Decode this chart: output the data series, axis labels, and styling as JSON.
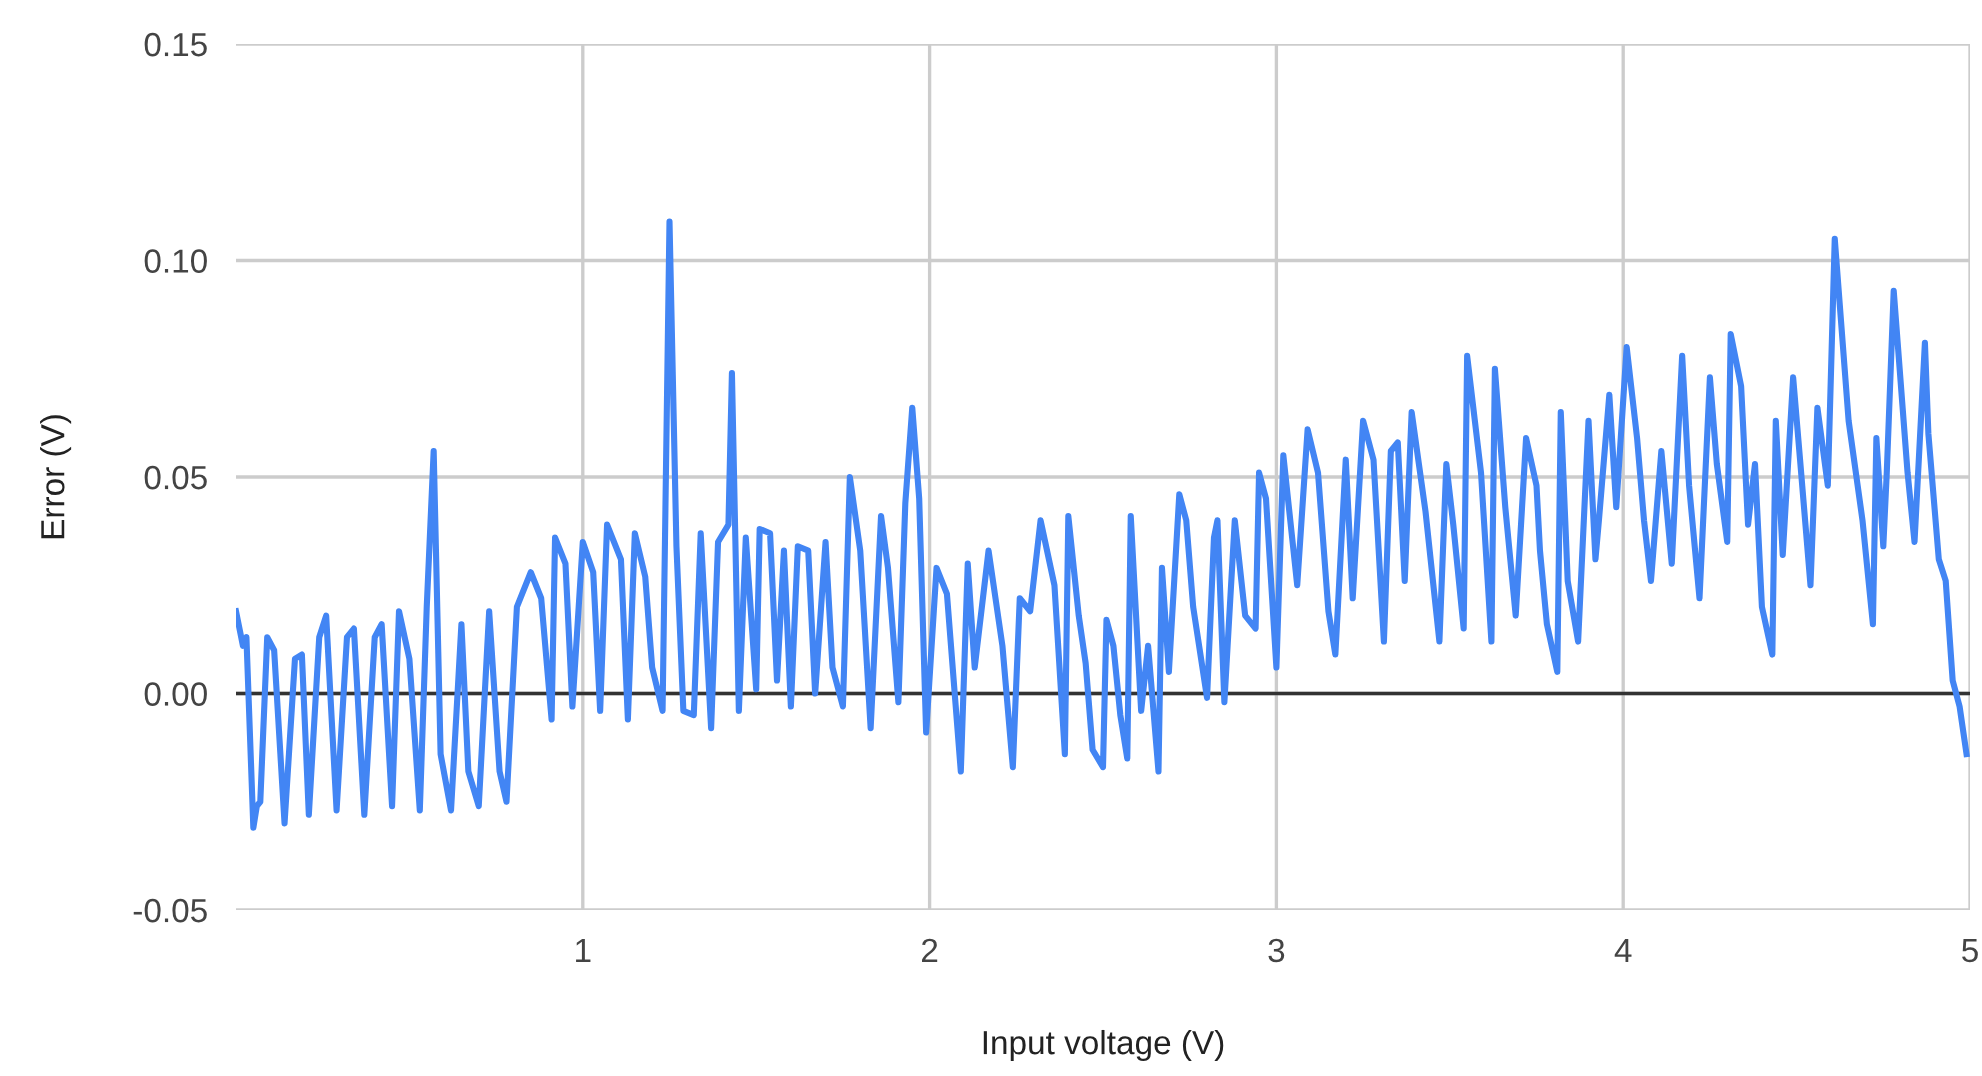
{
  "chart_data": {
    "type": "line",
    "xlabel": "Input voltage (V)",
    "ylabel": "Error (V)",
    "xlim": [
      0,
      5
    ],
    "xticks": [
      1,
      2,
      3,
      4,
      5
    ],
    "ylim": [
      -0.05,
      0.15
    ],
    "yticks": [
      {
        "value": -0.05,
        "label": "-0.05"
      },
      {
        "value": 0,
        "label": "0.00"
      },
      {
        "value": 0.05,
        "label": "0.05"
      },
      {
        "value": 0.1,
        "label": "0.10"
      },
      {
        "value": 0.15,
        "label": "0.15"
      }
    ],
    "grid": true,
    "marker": "none",
    "line_style": "solid",
    "ref_lines": [
      {
        "axis": "y",
        "value": 0,
        "color": "#333333"
      }
    ],
    "series": [
      {
        "color": "#4285f4",
        "x": [
          0.0,
          0.02,
          0.03,
          0.05,
          0.06,
          0.07,
          0.09,
          0.11,
          0.14,
          0.17,
          0.19,
          0.21,
          0.24,
          0.26,
          0.29,
          0.32,
          0.34,
          0.37,
          0.4,
          0.42,
          0.45,
          0.47,
          0.5,
          0.53,
          0.55,
          0.57,
          0.59,
          0.62,
          0.65,
          0.67,
          0.7,
          0.73,
          0.76,
          0.78,
          0.81,
          0.85,
          0.88,
          0.91,
          0.92,
          0.95,
          0.97,
          1.0,
          1.03,
          1.05,
          1.07,
          1.11,
          1.13,
          1.15,
          1.18,
          1.2,
          1.23,
          1.25,
          1.27,
          1.29,
          1.32,
          1.34,
          1.37,
          1.39,
          1.42,
          1.43,
          1.45,
          1.47,
          1.5,
          1.51,
          1.54,
          1.56,
          1.58,
          1.6,
          1.62,
          1.65,
          1.67,
          1.7,
          1.72,
          1.75,
          1.77,
          1.8,
          1.83,
          1.86,
          1.88,
          1.91,
          1.93,
          1.95,
          1.97,
          1.99,
          2.02,
          2.05,
          2.09,
          2.11,
          2.13,
          2.17,
          2.21,
          2.24,
          2.26,
          2.29,
          2.32,
          2.36,
          2.39,
          2.4,
          2.43,
          2.45,
          2.47,
          2.5,
          2.51,
          2.53,
          2.55,
          2.57,
          2.58,
          2.61,
          2.63,
          2.66,
          2.67,
          2.69,
          2.72,
          2.74,
          2.76,
          2.8,
          2.82,
          2.83,
          2.85,
          2.88,
          2.91,
          2.94,
          2.95,
          2.97,
          3.0,
          3.02,
          3.06,
          3.09,
          3.12,
          3.15,
          3.17,
          3.2,
          3.22,
          3.25,
          3.28,
          3.31,
          3.33,
          3.35,
          3.37,
          3.39,
          3.43,
          3.47,
          3.49,
          3.51,
          3.54,
          3.55,
          3.59,
          3.62,
          3.63,
          3.66,
          3.69,
          3.72,
          3.75,
          3.76,
          3.78,
          3.81,
          3.82,
          3.84,
          3.87,
          3.9,
          3.92,
          3.93,
          3.96,
          3.98,
          4.01,
          4.04,
          4.06,
          4.08,
          4.11,
          4.14,
          4.17,
          4.19,
          4.22,
          4.25,
          4.27,
          4.3,
          4.31,
          4.34,
          4.36,
          4.38,
          4.4,
          4.43,
          4.44,
          4.46,
          4.49,
          4.51,
          4.54,
          4.56,
          4.59,
          4.61,
          4.65,
          4.69,
          4.72,
          4.73,
          4.75,
          4.76,
          4.78,
          4.82,
          4.84,
          4.87,
          4.88,
          4.91,
          4.93,
          4.95,
          4.97,
          4.99
        ],
        "values": [
          0.019,
          0.011,
          0.013,
          -0.031,
          -0.026,
          -0.025,
          0.013,
          0.01,
          -0.03,
          0.008,
          0.009,
          -0.028,
          0.013,
          0.018,
          -0.027,
          0.013,
          0.015,
          -0.028,
          0.013,
          0.016,
          -0.026,
          0.019,
          0.008,
          -0.027,
          0.02,
          0.056,
          -0.014,
          -0.027,
          0.016,
          -0.018,
          -0.026,
          0.019,
          -0.018,
          -0.025,
          0.02,
          0.028,
          0.022,
          -0.006,
          0.036,
          0.03,
          -0.003,
          0.035,
          0.028,
          -0.004,
          0.039,
          0.031,
          -0.006,
          0.037,
          0.027,
          0.006,
          -0.004,
          0.109,
          0.034,
          -0.004,
          -0.005,
          0.037,
          -0.008,
          0.035,
          0.039,
          0.074,
          -0.004,
          0.036,
          0.001,
          0.038,
          0.037,
          0.003,
          0.033,
          -0.003,
          0.034,
          0.033,
          0.0,
          0.035,
          0.006,
          -0.003,
          0.05,
          0.033,
          -0.008,
          0.041,
          0.029,
          -0.002,
          0.044,
          0.066,
          0.045,
          -0.009,
          0.029,
          0.023,
          -0.018,
          0.03,
          0.006,
          0.033,
          0.011,
          -0.017,
          0.022,
          0.019,
          0.04,
          0.025,
          -0.014,
          0.041,
          0.018,
          0.007,
          -0.013,
          -0.017,
          0.017,
          0.011,
          -0.005,
          -0.015,
          0.041,
          -0.004,
          0.011,
          -0.018,
          0.029,
          0.005,
          0.046,
          0.04,
          0.02,
          -0.001,
          0.036,
          0.04,
          -0.002,
          0.04,
          0.018,
          0.015,
          0.051,
          0.045,
          0.006,
          0.055,
          0.025,
          0.061,
          0.051,
          0.019,
          0.009,
          0.054,
          0.022,
          0.063,
          0.054,
          0.012,
          0.056,
          0.058,
          0.026,
          0.065,
          0.042,
          0.012,
          0.053,
          0.039,
          0.015,
          0.078,
          0.051,
          0.012,
          0.075,
          0.043,
          0.018,
          0.059,
          0.048,
          0.033,
          0.016,
          0.005,
          0.065,
          0.026,
          0.012,
          0.063,
          0.031,
          0.04,
          0.069,
          0.043,
          0.08,
          0.059,
          0.04,
          0.026,
          0.056,
          0.03,
          0.078,
          0.048,
          0.022,
          0.073,
          0.053,
          0.035,
          0.083,
          0.071,
          0.039,
          0.053,
          0.02,
          0.009,
          0.063,
          0.032,
          0.073,
          0.054,
          0.025,
          0.066,
          0.048,
          0.105,
          0.063,
          0.04,
          0.016,
          0.059,
          0.034,
          0.051,
          0.093,
          0.051,
          0.035,
          0.081,
          0.06,
          0.031,
          0.026,
          0.003,
          -0.003,
          -0.014
        ]
      }
    ]
  }
}
